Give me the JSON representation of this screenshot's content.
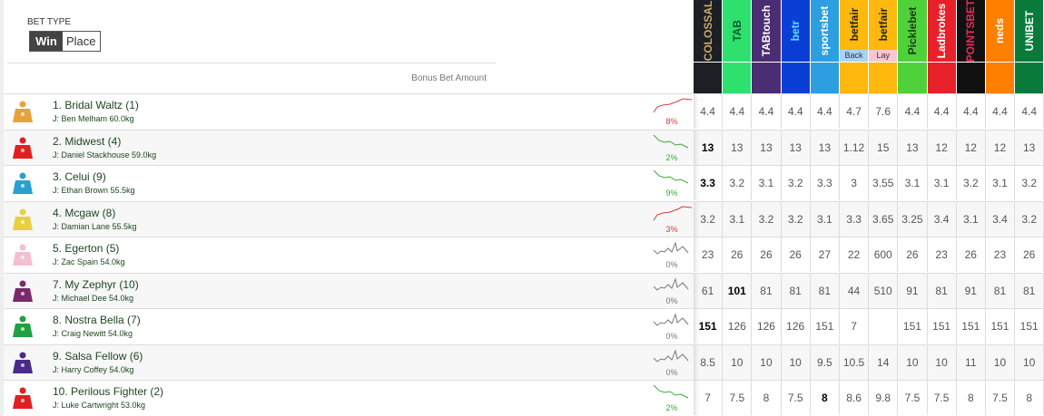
{
  "bet_type": {
    "label": "BET TYPE",
    "options": [
      "Win",
      "Place"
    ],
    "selected": "Win"
  },
  "bonus_label": "Bonus Bet Amount",
  "bookmakers": [
    {
      "name": "COLOSSAL",
      "color": "#1c1f24",
      "text": "#c9a86a"
    },
    {
      "name": "TAB",
      "color": "#2ee06d",
      "text": "#0a5a2a"
    },
    {
      "name": "TABtouch",
      "color": "#4b2d73",
      "text": "#ffffff"
    },
    {
      "name": "betr",
      "color": "#0a3fd6",
      "text": "#5ee0ff"
    },
    {
      "name": "sportsbet",
      "color": "#2d9fe0",
      "text": "#ffffff"
    },
    {
      "name": "betfair",
      "color": "#ffb80c",
      "text": "#222222",
      "sub": "Back",
      "sub_color": "#a9d4f5"
    },
    {
      "name": "betfair",
      "color": "#ffb80c",
      "text": "#222222",
      "sub": "Lay",
      "sub_color": "#f8c6d4"
    },
    {
      "name": "Picklebet",
      "color": "#4fd13b",
      "text": "#1a3a10"
    },
    {
      "name": "Ladbrokes",
      "color": "#e8202a",
      "text": "#ffffff"
    },
    {
      "name": "POINTSBET",
      "color": "#111111",
      "text": "#ee2a5a"
    },
    {
      "name": "neds",
      "color": "#ff7f00",
      "text": "#ffffff"
    },
    {
      "name": "UNIBET",
      "color": "#0a7a3a",
      "text": "#ffffff"
    }
  ],
  "runners": [
    {
      "name": "1. Bridal Waltz (1)",
      "jockey": "J: Ben Melham 60.0kg",
      "silk": "#e8a23a",
      "trend": "up",
      "pct": "8%",
      "odds": [
        "4.4",
        "4.4",
        "4.4",
        "4.4",
        "4.4",
        "4.7",
        "7.6",
        "4.4",
        "4.4",
        "4.4",
        "4.4",
        "4.4"
      ],
      "best": []
    },
    {
      "name": "2. Midwest (4)",
      "jockey": "J: Daniel Stackhouse 59.0kg",
      "silk": "#e02020",
      "trend": "down",
      "pct": "2%",
      "odds": [
        "13",
        "13",
        "13",
        "13",
        "13",
        "1.12",
        "15",
        "13",
        "12",
        "12",
        "12",
        "13"
      ],
      "best": [
        0
      ]
    },
    {
      "name": "3. Celui (9)",
      "jockey": "J: Ethan Brown 55.5kg",
      "silk": "#2aa0d0",
      "trend": "down",
      "pct": "9%",
      "odds": [
        "3.3",
        "3.2",
        "3.1",
        "3.2",
        "3.3",
        "3",
        "3.55",
        "3.1",
        "3.1",
        "3.2",
        "3.1",
        "3.2"
      ],
      "best": [
        0
      ]
    },
    {
      "name": "4. Mcgaw (8)",
      "jockey": "J: Damian Lane 55.5kg",
      "silk": "#e8d040",
      "trend": "up",
      "pct": "3%",
      "odds": [
        "3.2",
        "3.1",
        "3.2",
        "3.2",
        "3.1",
        "3.3",
        "3.65",
        "3.25",
        "3.4",
        "3.1",
        "3.4",
        "3.2"
      ],
      "best": []
    },
    {
      "name": "5. Egerton (5)",
      "jockey": "J: Zac Spain 54.0kg",
      "silk": "#f4c0d0",
      "trend": "flat",
      "pct": "0%",
      "odds": [
        "23",
        "26",
        "26",
        "26",
        "27",
        "22",
        "600",
        "26",
        "23",
        "26",
        "23",
        "26"
      ],
      "best": []
    },
    {
      "name": "7. My Zephyr (10)",
      "jockey": "J: Michael Dee 54.0kg",
      "silk": "#7a2a6a",
      "trend": "flat",
      "pct": "0%",
      "odds": [
        "61",
        "101",
        "81",
        "81",
        "81",
        "44",
        "510",
        "91",
        "81",
        "91",
        "81",
        "81"
      ],
      "best": [
        1
      ]
    },
    {
      "name": "8. Nostra Bella (7)",
      "jockey": "J: Craig Newitt 54.0kg",
      "silk": "#20a040",
      "trend": "flat",
      "pct": "0%",
      "odds": [
        "151",
        "126",
        "126",
        "126",
        "151",
        "7",
        "",
        "151",
        "151",
        "151",
        "151",
        "151"
      ],
      "best": [
        0
      ]
    },
    {
      "name": "9. Salsa Fellow (6)",
      "jockey": "J: Harry Coffey 54.0kg",
      "silk": "#4a2a8a",
      "trend": "flat",
      "pct": "0%",
      "odds": [
        "8.5",
        "10",
        "10",
        "10",
        "9.5",
        "10.5",
        "14",
        "10",
        "10",
        "11",
        "10",
        "10"
      ],
      "best": []
    },
    {
      "name": "10. Perilous Fighter (2)",
      "jockey": "J: Luke Cartwright 53.0kg",
      "silk": "#e02020",
      "trend": "down",
      "pct": "2%",
      "odds": [
        "7",
        "7.5",
        "8",
        "7.5",
        "8",
        "8.6",
        "9.8",
        "7.5",
        "7.5",
        "8",
        "7.5",
        "8"
      ],
      "best": [
        4
      ]
    }
  ],
  "trend_colors": {
    "up": "#d83a3a",
    "down": "#3aaa3a",
    "flat": "#777777"
  }
}
